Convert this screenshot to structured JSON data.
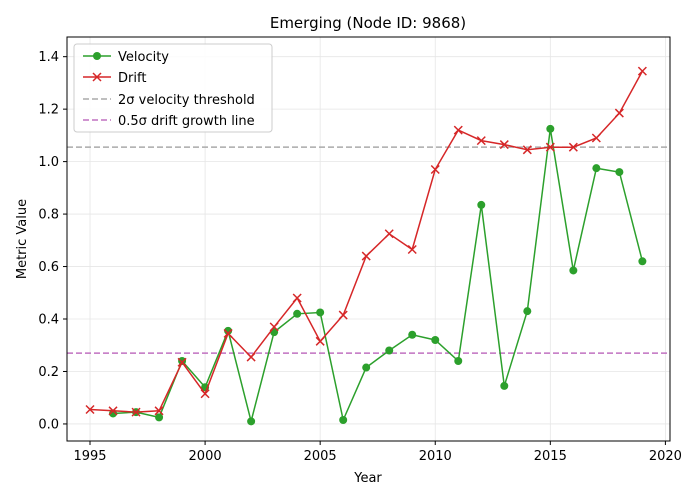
{
  "chart_data": {
    "type": "line",
    "title": "Emerging (Node ID: 9868)",
    "xlabel": "Year",
    "ylabel": "Metric Value",
    "xlim": [
      1994,
      2020.2
    ],
    "ylim": [
      -0.065,
      1.475
    ],
    "xticks": [
      1995,
      2000,
      2005,
      2010,
      2015,
      2020
    ],
    "yticks": [
      0.0,
      0.2,
      0.4,
      0.6,
      0.8,
      1.0,
      1.2,
      1.4
    ],
    "ytick_labels": [
      "0.0",
      "0.2",
      "0.4",
      "0.6",
      "0.8",
      "1.0",
      "1.2",
      "1.4"
    ],
    "grid": true,
    "legend_placement": "top-left",
    "series": [
      {
        "name": "Velocity",
        "color": "#2ca02c",
        "marker": "circle",
        "x": [
          1996,
          1997,
          1998,
          1999,
          2000,
          2001,
          2002,
          2003,
          2004,
          2005,
          2006,
          2007,
          2008,
          2009,
          2010,
          2011,
          2012,
          2013,
          2014,
          2015,
          2016,
          2017,
          2018,
          2019
        ],
        "values": [
          0.04,
          0.045,
          0.025,
          0.24,
          0.14,
          0.355,
          0.01,
          0.35,
          0.42,
          0.425,
          0.015,
          0.215,
          0.28,
          0.34,
          0.32,
          0.24,
          0.835,
          0.145,
          0.43,
          1.125,
          0.585,
          0.975,
          0.96,
          0.62
        ]
      },
      {
        "name": "Drift",
        "color": "#d62728",
        "marker": "x",
        "x": [
          1995,
          1996,
          1997,
          1998,
          1999,
          2000,
          2001,
          2002,
          2003,
          2004,
          2005,
          2006,
          2007,
          2008,
          2009,
          2010,
          2011,
          2012,
          2013,
          2014,
          2015,
          2016,
          2017,
          2018,
          2019
        ],
        "values": [
          0.055,
          0.05,
          0.045,
          0.05,
          0.235,
          0.115,
          0.345,
          0.255,
          0.37,
          0.48,
          0.315,
          0.415,
          0.64,
          0.725,
          0.665,
          0.97,
          1.12,
          1.08,
          1.065,
          1.045,
          1.055,
          1.055,
          1.09,
          1.185,
          1.345
        ]
      }
    ],
    "reference_lines": [
      {
        "name": "2σ velocity threshold",
        "value": 1.055,
        "color": "#aaaaaa"
      },
      {
        "name": "0.5σ drift growth line",
        "value": 0.27,
        "color": "#c071c0"
      }
    ]
  }
}
